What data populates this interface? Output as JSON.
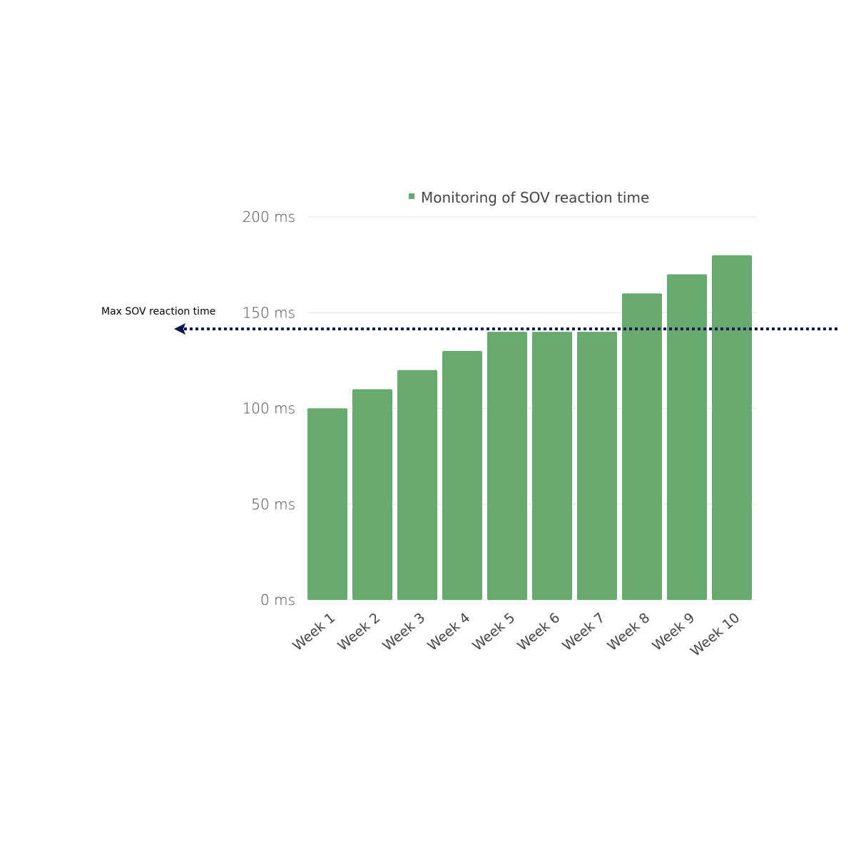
{
  "chart_data": {
    "type": "bar",
    "categories": [
      "Week 1",
      "Week 2",
      "Week 3",
      "Week 4",
      "Week 5",
      "Week 6",
      "Week 7",
      "Week 8",
      "Week 9",
      "Week 10"
    ],
    "series": [
      {
        "name": "Monitoring of SOV reaction time",
        "values": [
          100,
          110,
          120,
          130,
          140,
          140,
          140,
          160,
          170,
          180
        ],
        "color": "#67aa6f"
      }
    ],
    "ylim": [
      0,
      200
    ],
    "yticks": [
      0,
      50,
      100,
      150,
      200
    ],
    "ytick_labels": [
      "0 ms",
      "50 ms",
      "100 ms",
      "150 ms",
      "200 ms"
    ],
    "grid": true,
    "legend": "top",
    "annotation": {
      "label": "Max SOV reaction time",
      "value": 141.5,
      "color": "#0b1650",
      "style": "dotted arrow pointing left"
    }
  }
}
